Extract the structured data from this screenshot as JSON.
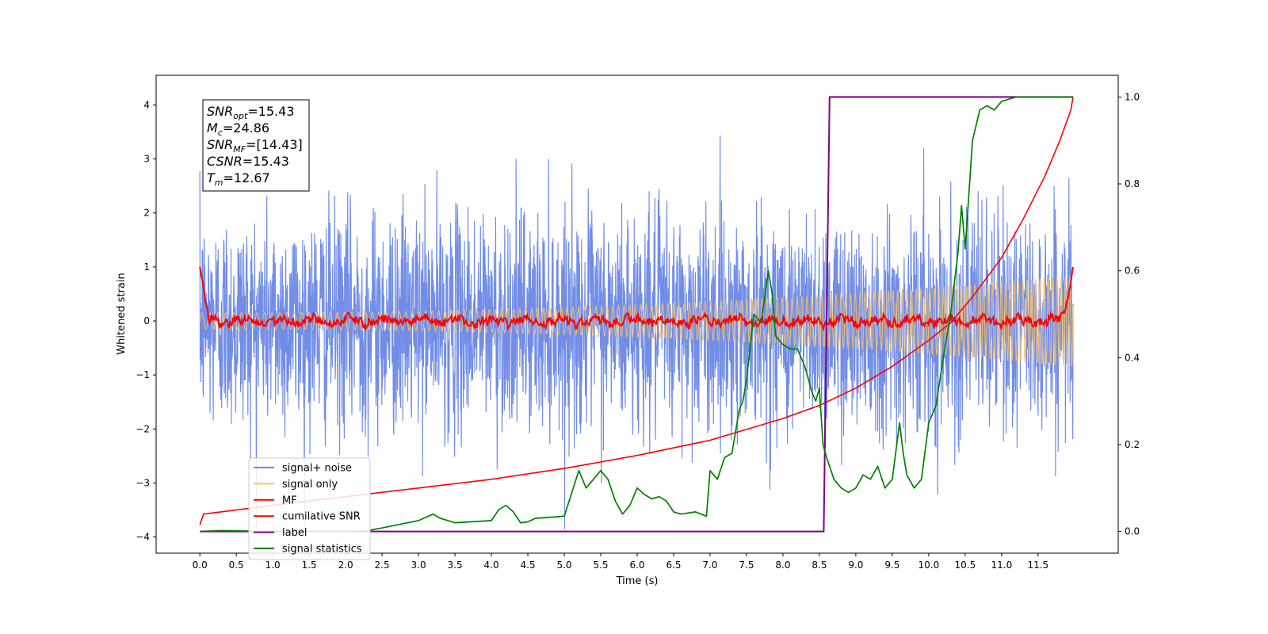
{
  "chart_data": {
    "type": "line",
    "xlabel": "Time (s)",
    "ylabel": "Whitened strain",
    "xlim": [
      -0.6,
      12.6
    ],
    "ylim": [
      -4.3,
      4.55
    ],
    "ylim_right": [
      -0.05,
      1.05
    ],
    "xticks": [
      0.0,
      0.5,
      1.0,
      1.5,
      2.0,
      2.5,
      3.0,
      3.5,
      4.0,
      4.5,
      5.0,
      5.5,
      6.0,
      6.5,
      7.0,
      7.5,
      8.0,
      8.5,
      9.0,
      9.5,
      10.0,
      10.5,
      11.0,
      11.5
    ],
    "xtick_labels": [
      "0.0",
      "0.5",
      "1.0",
      "1.5",
      "2.0",
      "2.5",
      "3.0",
      "3.5",
      "4.0",
      "4.5",
      "5.0",
      "5.5",
      "6.0",
      "6.5",
      "7.0",
      "7.5",
      "8.0",
      "8.5",
      "9.0",
      "9.5",
      "10.0",
      "10.5",
      "11.0",
      "11.5"
    ],
    "yticks": [
      -4,
      -3,
      -2,
      -1,
      0,
      1,
      2,
      3,
      4
    ],
    "ytick_labels": [
      "−4",
      "−3",
      "−2",
      "−1",
      "0",
      "1",
      "2",
      "3",
      "4"
    ],
    "yticks_right": [
      0.0,
      0.2,
      0.4,
      0.6,
      0.8,
      1.0
    ],
    "ytick_labels_right": [
      "0.0",
      "0.2",
      "0.4",
      "0.6",
      "0.8",
      "1.0"
    ],
    "legend_position": "lower-left",
    "series": [
      {
        "name": "signal+ noise",
        "color": "#6a87e6",
        "axis": "left",
        "kind": "noise",
        "x_range": [
          0,
          11.98
        ],
        "amplitude": 1.0
      },
      {
        "name": "signal only",
        "color": "#f5c26b",
        "axis": "left",
        "kind": "chirp",
        "x_range": [
          0,
          11.98
        ],
        "amplitude_start": 0.15,
        "amplitude_end": 0.85
      },
      {
        "name": "MF",
        "color": "#ff0000",
        "axis": "left",
        "kind": "mf",
        "x_range": [
          0,
          11.98
        ],
        "start_value": 1.0,
        "end_value": 1.0
      },
      {
        "name": "cumilative SNR",
        "color": "#ff0000",
        "axis": "right",
        "x": [
          0,
          0.05,
          1,
          2,
          3,
          4,
          5,
          6,
          7,
          8,
          8.5,
          9,
          9.5,
          10,
          10.3,
          10.6,
          11,
          11.3,
          11.6,
          11.8,
          11.95,
          11.98
        ],
        "y": [
          0.015,
          0.04,
          0.06,
          0.08,
          0.1,
          0.12,
          0.145,
          0.175,
          0.21,
          0.26,
          0.29,
          0.33,
          0.38,
          0.44,
          0.48,
          0.54,
          0.63,
          0.72,
          0.82,
          0.9,
          0.97,
          1.0
        ]
      },
      {
        "name": "label",
        "color": "#800080",
        "axis": "right",
        "x": [
          0,
          8.56,
          8.64,
          11.98
        ],
        "y": [
          0.0,
          0.0,
          1.0,
          1.0
        ]
      },
      {
        "name": "signal statistics",
        "color": "#008000",
        "axis": "right",
        "x": [
          0,
          0.3,
          1.0,
          2.0,
          2.3,
          2.5,
          2.7,
          3.0,
          3.2,
          3.3,
          3.5,
          4.0,
          4.1,
          4.2,
          4.3,
          4.4,
          4.5,
          4.6,
          5.0,
          5.2,
          5.3,
          5.4,
          5.5,
          5.6,
          5.7,
          5.8,
          5.9,
          6.0,
          6.1,
          6.2,
          6.3,
          6.4,
          6.5,
          6.6,
          6.8,
          6.95,
          7.0,
          7.1,
          7.2,
          7.3,
          7.4,
          7.45,
          7.5,
          7.6,
          7.7,
          7.8,
          7.85,
          7.9,
          8.0,
          8.1,
          8.2,
          8.3,
          8.4,
          8.45,
          8.5,
          8.55,
          8.6,
          8.7,
          8.8,
          8.9,
          9.0,
          9.1,
          9.2,
          9.3,
          9.4,
          9.5,
          9.6,
          9.65,
          9.7,
          9.8,
          9.9,
          10.0,
          10.1,
          10.2,
          10.3,
          10.4,
          10.45,
          10.5,
          10.6,
          10.7,
          10.8,
          10.9,
          11.0,
          11.2,
          11.5,
          11.7,
          11.8,
          11.98
        ],
        "y": [
          0.0,
          0.002,
          0.0,
          0.0,
          0.002,
          0.008,
          0.015,
          0.025,
          0.04,
          0.03,
          0.02,
          0.025,
          0.05,
          0.06,
          0.045,
          0.02,
          0.022,
          0.03,
          0.035,
          0.14,
          0.1,
          0.12,
          0.14,
          0.12,
          0.07,
          0.04,
          0.06,
          0.1,
          0.085,
          0.075,
          0.08,
          0.07,
          0.045,
          0.04,
          0.045,
          0.035,
          0.14,
          0.12,
          0.17,
          0.18,
          0.28,
          0.3,
          0.35,
          0.5,
          0.48,
          0.6,
          0.55,
          0.45,
          0.43,
          0.42,
          0.42,
          0.38,
          0.32,
          0.3,
          0.33,
          0.2,
          0.17,
          0.12,
          0.1,
          0.09,
          0.1,
          0.13,
          0.12,
          0.15,
          0.1,
          0.12,
          0.25,
          0.18,
          0.13,
          0.1,
          0.12,
          0.25,
          0.29,
          0.4,
          0.5,
          0.64,
          0.75,
          0.65,
          0.9,
          0.97,
          0.98,
          0.97,
          0.99,
          1.0,
          1.0,
          1.0,
          1.0,
          1.0
        ]
      }
    ],
    "annotation": {
      "lines": [
        {
          "base": "SNR",
          "sub": "opt",
          "rest": "=15.43"
        },
        {
          "base": "M",
          "sub": "c",
          "rest": "=24.86"
        },
        {
          "base": "SNR",
          "sub": "MF",
          "rest": "=[14.43]"
        },
        {
          "base": "CSNR",
          "sub": "",
          "rest": "=15.43"
        },
        {
          "base": "T",
          "sub": "m",
          "rest": "=12.67"
        }
      ]
    }
  }
}
